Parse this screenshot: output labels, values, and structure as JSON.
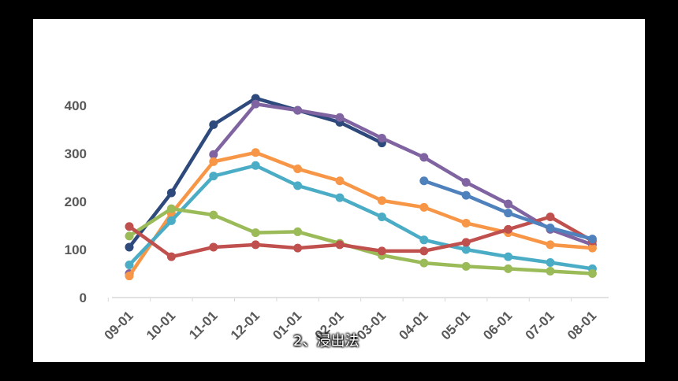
{
  "subtitle": "2、浸出法",
  "chart_data": {
    "type": "line",
    "title": "",
    "xlabel": "",
    "ylabel": "",
    "categories": [
      "09-01",
      "10-01",
      "11-01",
      "12-01",
      "01-01",
      "02-01",
      "03-01",
      "04-01",
      "05-01",
      "06-01",
      "07-01",
      "08-01"
    ],
    "ylim": [
      0,
      400
    ],
    "yticks": [
      0,
      100,
      200,
      300,
      400
    ],
    "grid": false,
    "legend": "none",
    "series": [
      {
        "color": "#2E4A7D",
        "values": [
          105,
          218,
          360,
          415,
          390,
          365,
          322,
          null,
          null,
          null,
          null,
          null
        ]
      },
      {
        "color": "#8064A2",
        "values": [
          50,
          null,
          298,
          403,
          390,
          375,
          332,
          292,
          240,
          195,
          142,
          110
        ]
      },
      {
        "color": "#F79646",
        "values": [
          45,
          175,
          283,
          302,
          268,
          243,
          202,
          188,
          155,
          135,
          110,
          103
        ]
      },
      {
        "color": "#4BACC6",
        "values": [
          68,
          160,
          253,
          275,
          233,
          208,
          168,
          120,
          100,
          85,
          73,
          60
        ]
      },
      {
        "color": "#9BBB59",
        "values": [
          128,
          185,
          172,
          135,
          137,
          113,
          88,
          72,
          65,
          60,
          55,
          50
        ]
      },
      {
        "color": "#C0504D",
        "values": [
          148,
          85,
          105,
          110,
          103,
          110,
          97,
          97,
          115,
          142,
          168,
          118
        ]
      },
      {
        "color": "#4F81BD",
        "values": [
          null,
          null,
          null,
          null,
          null,
          null,
          null,
          243,
          213,
          176,
          145,
          122
        ]
      }
    ]
  }
}
